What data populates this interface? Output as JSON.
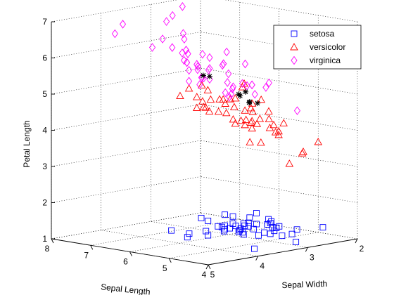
{
  "chart_data": {
    "type": "scatter",
    "title": "",
    "xlabel": "Sepal Length",
    "ylabel": "Sepal Width",
    "zlabel": "Petal Length",
    "x_ticks": [
      "4",
      "5",
      "6",
      "7",
      "8"
    ],
    "y_ticks": [
      "2",
      "3",
      "4",
      "5"
    ],
    "z_ticks": [
      "1",
      "2",
      "3",
      "4",
      "5",
      "6",
      "7"
    ],
    "xlim": [
      4,
      8
    ],
    "ylim": [
      2,
      5
    ],
    "zlim": [
      1,
      7
    ],
    "grid": true,
    "legend_position": "top-right",
    "series": [
      {
        "name": "setosa",
        "marker": "square",
        "color": "#0000ff",
        "points": [
          [
            5.1,
            3.5,
            1.4
          ],
          [
            4.9,
            3.0,
            1.4
          ],
          [
            4.7,
            3.2,
            1.3
          ],
          [
            4.6,
            3.1,
            1.5
          ],
          [
            5.0,
            3.6,
            1.4
          ],
          [
            5.4,
            3.9,
            1.7
          ],
          [
            4.6,
            3.4,
            1.4
          ],
          [
            5.0,
            3.4,
            1.5
          ],
          [
            4.4,
            2.9,
            1.4
          ],
          [
            4.9,
            3.1,
            1.5
          ],
          [
            5.4,
            3.7,
            1.5
          ],
          [
            4.8,
            3.4,
            1.6
          ],
          [
            4.8,
            3.0,
            1.4
          ],
          [
            4.3,
            3.0,
            1.1
          ],
          [
            5.8,
            4.0,
            1.2
          ],
          [
            5.7,
            4.4,
            1.5
          ],
          [
            5.4,
            3.9,
            1.3
          ],
          [
            5.1,
            3.5,
            1.4
          ],
          [
            5.7,
            3.8,
            1.7
          ],
          [
            5.1,
            3.8,
            1.5
          ],
          [
            5.4,
            3.4,
            1.7
          ],
          [
            5.1,
            3.7,
            1.5
          ],
          [
            4.6,
            3.6,
            1.0
          ],
          [
            5.1,
            3.3,
            1.7
          ],
          [
            4.8,
            3.4,
            1.9
          ],
          [
            5.0,
            3.0,
            1.6
          ],
          [
            5.0,
            3.4,
            1.6
          ],
          [
            5.2,
            3.5,
            1.5
          ],
          [
            5.2,
            3.4,
            1.4
          ],
          [
            4.7,
            3.2,
            1.6
          ],
          [
            4.8,
            3.1,
            1.6
          ],
          [
            5.4,
            3.4,
            1.5
          ],
          [
            5.2,
            4.1,
            1.5
          ],
          [
            5.5,
            4.2,
            1.4
          ],
          [
            4.9,
            3.1,
            1.5
          ],
          [
            5.0,
            3.2,
            1.2
          ],
          [
            5.5,
            3.5,
            1.3
          ],
          [
            4.9,
            3.6,
            1.4
          ],
          [
            4.4,
            3.0,
            1.3
          ],
          [
            5.1,
            3.4,
            1.5
          ],
          [
            5.0,
            3.5,
            1.3
          ],
          [
            4.5,
            2.3,
            1.3
          ],
          [
            4.4,
            3.2,
            1.3
          ],
          [
            5.0,
            3.5,
            1.6
          ],
          [
            5.1,
            3.8,
            1.9
          ],
          [
            4.8,
            3.0,
            1.4
          ],
          [
            5.1,
            3.8,
            1.6
          ],
          [
            4.6,
            3.2,
            1.4
          ],
          [
            5.3,
            3.7,
            1.5
          ],
          [
            5.0,
            3.3,
            1.4
          ]
        ]
      },
      {
        "name": "versicolor",
        "marker": "triangle",
        "color": "#ff0000",
        "points": [
          [
            7.0,
            3.2,
            4.7
          ],
          [
            6.4,
            3.2,
            4.5
          ],
          [
            6.9,
            3.1,
            4.9
          ],
          [
            5.5,
            2.3,
            4.0
          ],
          [
            6.5,
            2.8,
            4.6
          ],
          [
            5.7,
            2.8,
            4.5
          ],
          [
            6.3,
            3.3,
            4.7
          ],
          [
            4.9,
            2.4,
            3.3
          ],
          [
            6.6,
            2.9,
            4.6
          ],
          [
            5.2,
            2.7,
            3.9
          ],
          [
            5.0,
            2.0,
            3.5
          ],
          [
            5.9,
            3.0,
            4.2
          ],
          [
            6.0,
            2.2,
            4.0
          ],
          [
            6.1,
            2.9,
            4.7
          ],
          [
            5.6,
            2.9,
            3.6
          ],
          [
            6.7,
            3.1,
            4.4
          ],
          [
            5.6,
            3.0,
            4.5
          ],
          [
            5.8,
            2.7,
            4.1
          ],
          [
            6.2,
            2.2,
            4.5
          ],
          [
            5.6,
            2.5,
            3.9
          ],
          [
            5.9,
            3.2,
            4.8
          ],
          [
            6.1,
            2.8,
            4.0
          ],
          [
            6.3,
            2.5,
            4.9
          ],
          [
            6.1,
            2.8,
            4.7
          ],
          [
            6.4,
            2.9,
            4.3
          ],
          [
            6.6,
            3.0,
            4.4
          ],
          [
            6.8,
            2.8,
            4.8
          ],
          [
            6.7,
            3.0,
            5.0
          ],
          [
            6.0,
            2.9,
            4.5
          ],
          [
            5.7,
            2.6,
            3.5
          ],
          [
            5.5,
            2.4,
            3.8
          ],
          [
            5.5,
            2.4,
            3.7
          ],
          [
            5.8,
            2.7,
            3.9
          ],
          [
            6.0,
            2.7,
            5.1
          ],
          [
            5.4,
            3.0,
            4.5
          ],
          [
            6.0,
            3.4,
            4.5
          ],
          [
            6.7,
            3.1,
            4.7
          ],
          [
            6.3,
            2.3,
            4.4
          ],
          [
            5.6,
            3.0,
            4.1
          ],
          [
            5.5,
            2.5,
            4.0
          ],
          [
            5.5,
            2.6,
            4.4
          ],
          [
            6.1,
            3.0,
            4.6
          ],
          [
            5.8,
            2.6,
            4.0
          ],
          [
            5.0,
            2.3,
            3.3
          ],
          [
            5.6,
            2.7,
            4.2
          ],
          [
            5.7,
            3.0,
            4.2
          ],
          [
            5.7,
            2.9,
            4.2
          ],
          [
            6.2,
            2.9,
            4.3
          ],
          [
            5.1,
            2.5,
            3.0
          ],
          [
            5.7,
            2.8,
            4.1
          ]
        ]
      },
      {
        "name": "virginica",
        "marker": "diamond",
        "color": "#ff00ff",
        "points": [
          [
            6.3,
            3.3,
            6.0
          ],
          [
            5.8,
            2.7,
            5.1
          ],
          [
            7.1,
            3.0,
            5.9
          ],
          [
            6.3,
            2.9,
            5.6
          ],
          [
            6.5,
            3.0,
            5.8
          ],
          [
            7.6,
            3.0,
            6.6
          ],
          [
            4.9,
            2.5,
            4.5
          ],
          [
            7.3,
            2.9,
            6.3
          ],
          [
            6.7,
            2.5,
            5.8
          ],
          [
            7.2,
            3.6,
            6.1
          ],
          [
            6.5,
            3.2,
            5.1
          ],
          [
            6.4,
            2.7,
            5.3
          ],
          [
            6.8,
            3.0,
            5.5
          ],
          [
            5.7,
            2.5,
            5.0
          ],
          [
            5.8,
            2.8,
            5.1
          ],
          [
            6.4,
            3.2,
            5.3
          ],
          [
            6.5,
            3.0,
            5.5
          ],
          [
            7.7,
            3.8,
            6.7
          ],
          [
            7.7,
            2.6,
            6.9
          ],
          [
            6.0,
            2.2,
            5.0
          ],
          [
            6.9,
            3.2,
            5.7
          ],
          [
            5.6,
            2.8,
            4.9
          ],
          [
            7.7,
            2.8,
            6.7
          ],
          [
            6.3,
            2.7,
            4.9
          ],
          [
            6.7,
            3.3,
            5.7
          ],
          [
            7.2,
            3.2,
            6.0
          ],
          [
            6.2,
            2.8,
            4.8
          ],
          [
            6.1,
            3.0,
            4.9
          ],
          [
            6.4,
            2.8,
            5.6
          ],
          [
            7.2,
            3.0,
            5.8
          ],
          [
            7.4,
            2.8,
            6.1
          ],
          [
            7.9,
            3.8,
            6.4
          ],
          [
            6.4,
            2.8,
            5.6
          ],
          [
            6.3,
            2.8,
            5.1
          ],
          [
            6.1,
            2.6,
            5.6
          ],
          [
            7.7,
            3.0,
            6.1
          ],
          [
            6.3,
            3.4,
            5.6
          ],
          [
            6.4,
            3.1,
            5.5
          ],
          [
            6.0,
            3.0,
            4.8
          ],
          [
            6.9,
            3.1,
            5.4
          ],
          [
            6.7,
            3.1,
            5.6
          ],
          [
            6.9,
            3.1,
            5.1
          ],
          [
            5.8,
            2.7,
            5.1
          ],
          [
            6.8,
            3.2,
            5.9
          ],
          [
            6.7,
            3.3,
            5.7
          ],
          [
            6.7,
            3.0,
            5.2
          ],
          [
            6.3,
            2.5,
            5.0
          ],
          [
            6.5,
            3.0,
            5.2
          ],
          [
            6.2,
            3.4,
            5.4
          ],
          [
            5.9,
            3.0,
            5.1
          ]
        ]
      },
      {
        "name": "",
        "marker": "star",
        "color": "#000000",
        "points": [
          [
            6.6,
            3.05,
            5.3
          ],
          [
            6.5,
            3.0,
            5.28
          ],
          [
            5.95,
            2.85,
            4.85
          ],
          [
            5.9,
            2.75,
            4.9
          ],
          [
            5.95,
            2.82,
            4.8
          ],
          [
            6.0,
            2.6,
            4.55
          ],
          [
            6.05,
            2.55,
            4.55
          ],
          [
            5.85,
            2.55,
            4.55
          ]
        ]
      }
    ]
  }
}
